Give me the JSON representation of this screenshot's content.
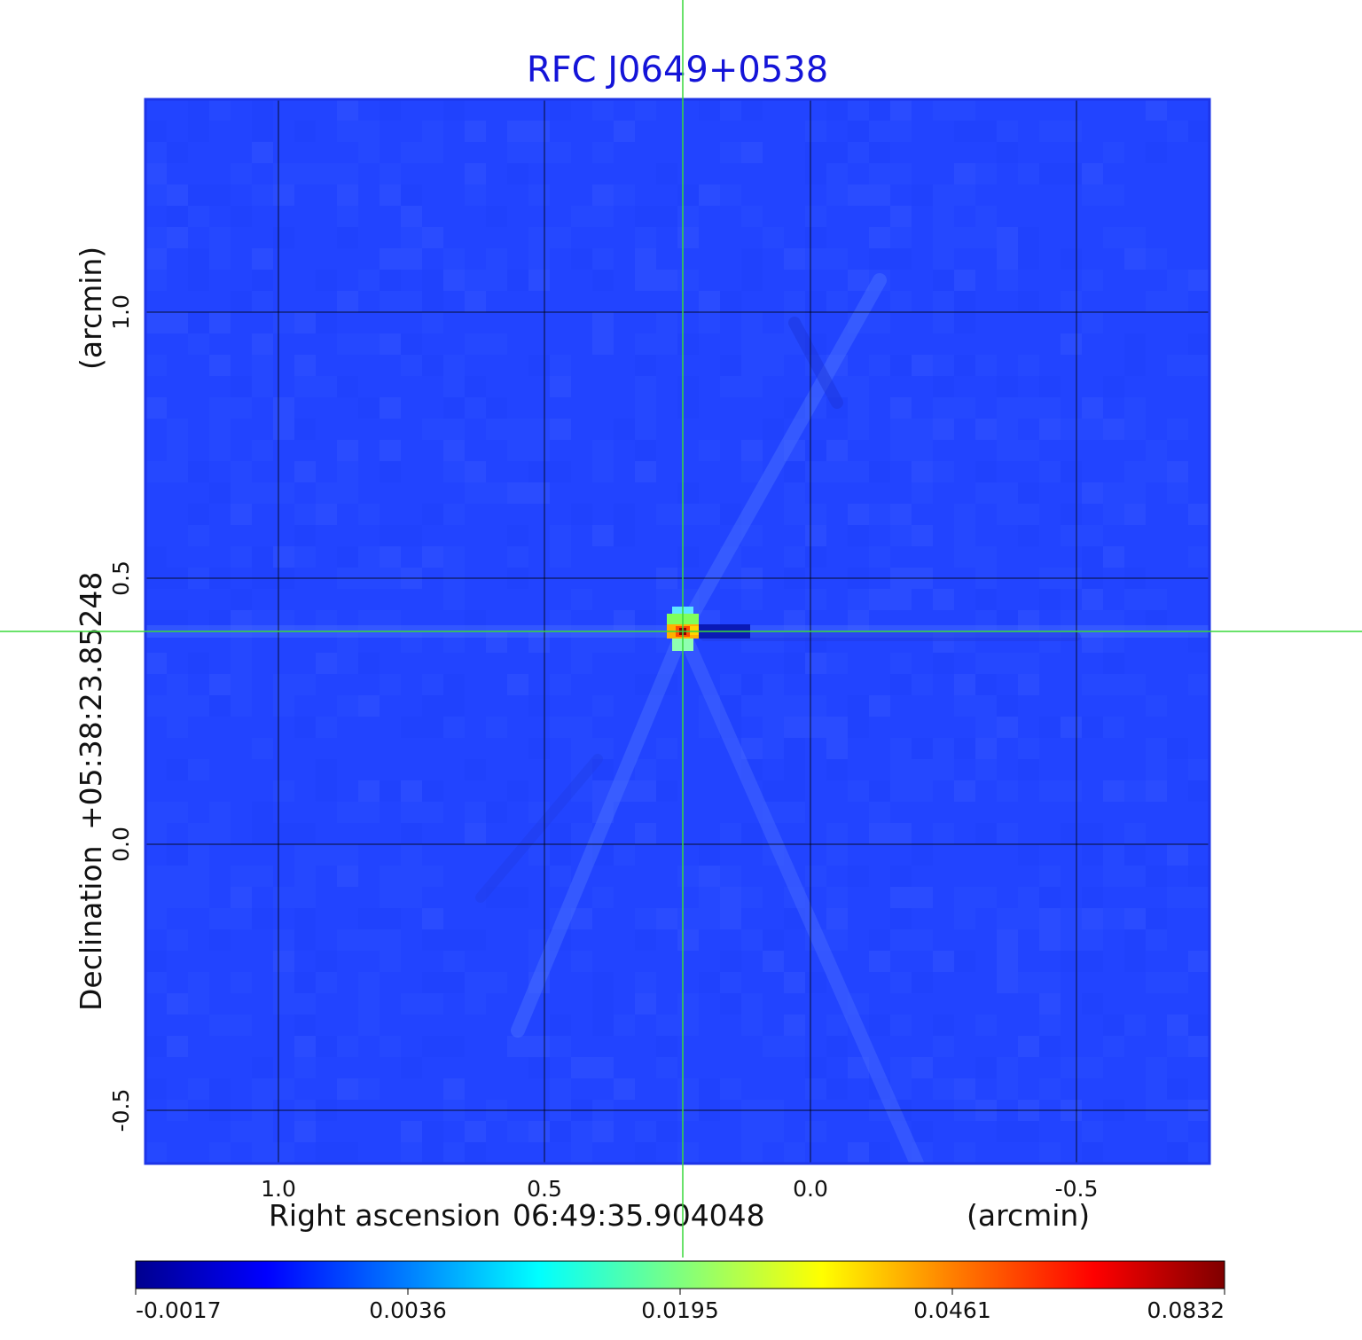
{
  "chart_data": {
    "type": "heatmap",
    "title": "RFC J0649+0538",
    "xlabel_prefix": "Right ascension",
    "xlabel_value": "06:49:35.904048",
    "xlabel_unit": "(arcmin)",
    "ylabel_prefix": "Declination",
    "ylabel_value": "+05:38:23.85248",
    "ylabel_unit": "(arcmin)",
    "xlim": [
      1.25,
      -0.75
    ],
    "ylim": [
      -0.6,
      1.4
    ],
    "x_ticks": [
      1.0,
      0.5,
      0.0,
      -0.5
    ],
    "x_tick_labels": [
      "1.0",
      "0.5",
      "0.0",
      "-0.5"
    ],
    "y_ticks": [
      -0.5,
      0.0,
      0.5,
      1.0
    ],
    "y_tick_labels": [
      "-0.5",
      "0.0",
      "0.5",
      "1.0"
    ],
    "grid": true,
    "crosshair": {
      "x": 0.24,
      "y": 0.4,
      "color": "#39d83a"
    },
    "peak_source": {
      "x": 0.24,
      "y": 0.4,
      "value": 0.0832
    },
    "colorbar": {
      "colormap": "jet",
      "tick_labels": [
        "-0.0017",
        "0.0036",
        "0.0195",
        "0.0461",
        "0.0832"
      ]
    },
    "colors": {
      "title": "#1414d8",
      "background": "#2244ff",
      "axis_border": "#1d35e8",
      "crosshair": "#39d83a"
    }
  }
}
